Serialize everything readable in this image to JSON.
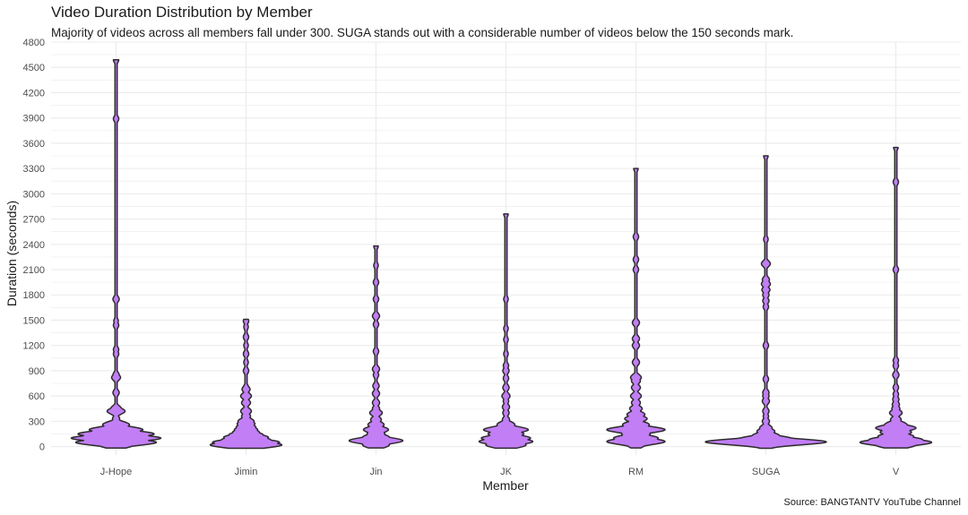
{
  "colors": {
    "violin_fill": "#c27ef5",
    "violin_stroke": "#2b2b2b",
    "grid": "#ebebeb",
    "background": "#ffffff"
  },
  "chart_data": {
    "type": "violin",
    "title": "Video Duration Distribution by Member",
    "subtitle": "Majority of videos across all members fall under 300. SUGA stands out with a considerable number of videos below the 150 seconds mark.",
    "caption": "Source: BANGTANTV YouTube Channel",
    "xlabel": "Member",
    "ylabel": "Duration (seconds)",
    "ylim": [
      -100,
      4800
    ],
    "yticks": [
      0,
      300,
      600,
      900,
      1200,
      1500,
      1800,
      2100,
      2400,
      2700,
      3000,
      3300,
      3600,
      3900,
      4200,
      4500,
      4800
    ],
    "grid": true,
    "categories": [
      "J-Hope",
      "Jimin",
      "Jin",
      "JK",
      "RM",
      "SUGA",
      "V"
    ],
    "series": [
      {
        "category": "J-Hope",
        "max": 4590,
        "bulges": [
          [
            20,
            40
          ],
          [
            50,
            90
          ],
          [
            100,
            100
          ],
          [
            150,
            85
          ],
          [
            200,
            60
          ],
          [
            260,
            30
          ],
          [
            330,
            8
          ],
          [
            420,
            20
          ],
          [
            450,
            12
          ],
          [
            640,
            7
          ],
          [
            820,
            10
          ],
          [
            850,
            7
          ],
          [
            1100,
            6
          ],
          [
            1150,
            6
          ],
          [
            1440,
            6
          ],
          [
            1490,
            5
          ],
          [
            1750,
            7
          ],
          [
            3890,
            6
          ],
          [
            4590,
            6
          ]
        ]
      },
      {
        "category": "Jimin",
        "max": 1510,
        "bulges": [
          [
            20,
            80
          ],
          [
            50,
            75
          ],
          [
            80,
            55
          ],
          [
            110,
            50
          ],
          [
            140,
            38
          ],
          [
            170,
            30
          ],
          [
            200,
            26
          ],
          [
            230,
            22
          ],
          [
            270,
            20
          ],
          [
            300,
            18
          ],
          [
            360,
            10
          ],
          [
            420,
            12
          ],
          [
            520,
            10
          ],
          [
            600,
            12
          ],
          [
            680,
            9
          ],
          [
            700,
            6
          ],
          [
            900,
            6
          ],
          [
            1000,
            5
          ],
          [
            1100,
            6
          ],
          [
            1200,
            5
          ],
          [
            1300,
            6
          ],
          [
            1420,
            5
          ],
          [
            1490,
            6
          ],
          [
            1510,
            5
          ]
        ]
      },
      {
        "category": "Jin",
        "max": 2380,
        "bulges": [
          [
            20,
            30
          ],
          [
            70,
            60
          ],
          [
            110,
            30
          ],
          [
            150,
            20
          ],
          [
            200,
            28
          ],
          [
            260,
            18
          ],
          [
            320,
            12
          ],
          [
            400,
            14
          ],
          [
            450,
            8
          ],
          [
            520,
            8
          ],
          [
            630,
            8
          ],
          [
            720,
            7
          ],
          [
            850,
            6
          ],
          [
            920,
            8
          ],
          [
            1130,
            6
          ],
          [
            1450,
            6
          ],
          [
            1550,
            8
          ],
          [
            1750,
            6
          ],
          [
            1950,
            6
          ],
          [
            2150,
            5
          ],
          [
            2380,
            5
          ]
        ]
      },
      {
        "category": "JK",
        "max": 2760,
        "bulges": [
          [
            20,
            45
          ],
          [
            60,
            60
          ],
          [
            100,
            55
          ],
          [
            150,
            40
          ],
          [
            200,
            50
          ],
          [
            260,
            20
          ],
          [
            320,
            8
          ],
          [
            400,
            7
          ],
          [
            470,
            8
          ],
          [
            540,
            6
          ],
          [
            600,
            9
          ],
          [
            700,
            7
          ],
          [
            810,
            6
          ],
          [
            900,
            7
          ],
          [
            960,
            6
          ],
          [
            1100,
            5
          ],
          [
            1270,
            5
          ],
          [
            1400,
            5
          ],
          [
            1750,
            5
          ],
          [
            2760,
            5
          ]
        ]
      },
      {
        "category": "RM",
        "max": 3300,
        "bulges": [
          [
            20,
            20
          ],
          [
            60,
            65
          ],
          [
            100,
            50
          ],
          [
            150,
            32
          ],
          [
            200,
            65
          ],
          [
            260,
            30
          ],
          [
            330,
            25
          ],
          [
            380,
            20
          ],
          [
            450,
            14
          ],
          [
            520,
            10
          ],
          [
            600,
            12
          ],
          [
            700,
            10
          ],
          [
            780,
            10
          ],
          [
            820,
            12
          ],
          [
            1000,
            8
          ],
          [
            1200,
            8
          ],
          [
            1280,
            8
          ],
          [
            1470,
            8
          ],
          [
            2100,
            6
          ],
          [
            2220,
            6
          ],
          [
            2490,
            6
          ],
          [
            3300,
            5
          ]
        ]
      },
      {
        "category": "SUGA",
        "max": 3450,
        "bulges": [
          [
            30,
            40
          ],
          [
            55,
            135
          ],
          [
            90,
            60
          ],
          [
            130,
            30
          ],
          [
            180,
            20
          ],
          [
            220,
            14
          ],
          [
            300,
            8
          ],
          [
            360,
            6
          ],
          [
            420,
            7
          ],
          [
            540,
            8
          ],
          [
            600,
            7
          ],
          [
            640,
            7
          ],
          [
            800,
            6
          ],
          [
            1200,
            6
          ],
          [
            1660,
            6
          ],
          [
            1730,
            7
          ],
          [
            1800,
            7
          ],
          [
            1860,
            9
          ],
          [
            1930,
            10
          ],
          [
            1980,
            8
          ],
          [
            2170,
            10
          ],
          [
            2460,
            5
          ],
          [
            3450,
            5
          ]
        ]
      },
      {
        "category": "V",
        "max": 3550,
        "bulges": [
          [
            20,
            45
          ],
          [
            50,
            80
          ],
          [
            80,
            60
          ],
          [
            120,
            40
          ],
          [
            170,
            35
          ],
          [
            220,
            45
          ],
          [
            260,
            25
          ],
          [
            320,
            12
          ],
          [
            400,
            14
          ],
          [
            450,
            9
          ],
          [
            500,
            8
          ],
          [
            560,
            7
          ],
          [
            620,
            6
          ],
          [
            700,
            6
          ],
          [
            850,
            7
          ],
          [
            960,
            6
          ],
          [
            1020,
            6
          ],
          [
            2100,
            6
          ],
          [
            3140,
            6
          ],
          [
            3550,
            5
          ]
        ]
      }
    ]
  }
}
